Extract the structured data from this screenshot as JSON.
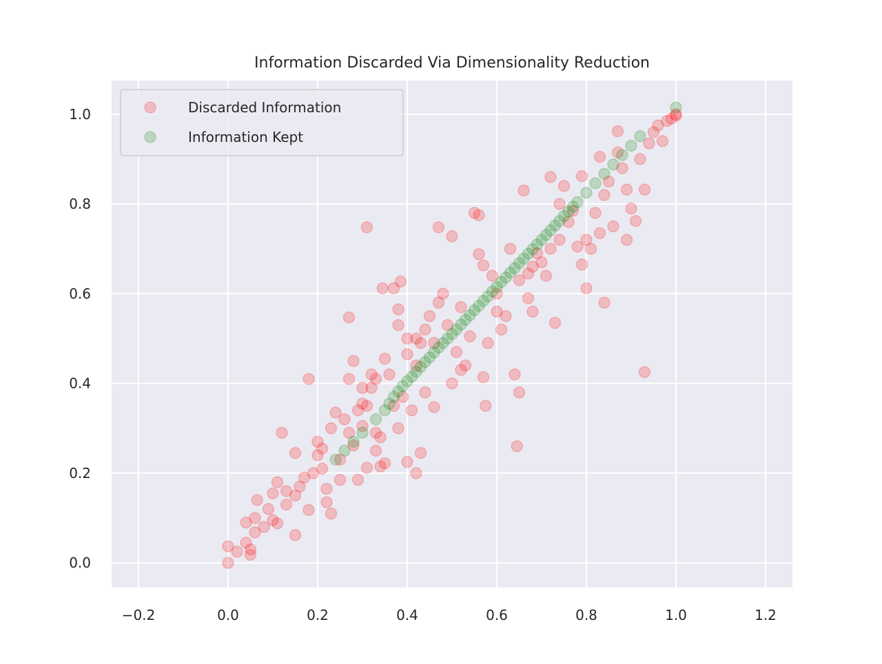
{
  "chart_data": {
    "type": "scatter",
    "title": "Information Discarded Via Dimensionality Reduction",
    "xlabel": "",
    "ylabel": "",
    "xlim": [
      -0.26,
      1.26
    ],
    "ylim": [
      -0.055,
      1.075
    ],
    "x_ticks": [
      -0.2,
      0.0,
      0.2,
      0.4,
      0.6,
      0.8,
      1.0,
      1.2
    ],
    "x_tick_labels": [
      "−0.2",
      "0.0",
      "0.2",
      "0.4",
      "0.6",
      "0.8",
      "1.0",
      "1.2"
    ],
    "y_ticks": [
      0.0,
      0.2,
      0.4,
      0.6,
      0.8,
      1.0
    ],
    "y_tick_labels": [
      "0.0",
      "0.2",
      "0.4",
      "0.6",
      "0.8",
      "1.0"
    ],
    "grid": true,
    "legend_position": "top-left",
    "colors": {
      "background": "#eaeaf2",
      "grid": "#ffffff",
      "discarded": "#ff0000",
      "kept": "#008000",
      "text": "#262626"
    },
    "series": [
      {
        "name": "Discarded Information",
        "color": "#ff0000",
        "alpha": 0.2,
        "points": [
          [
            0.0,
            0.0
          ],
          [
            0.0,
            0.037
          ],
          [
            0.02,
            0.025
          ],
          [
            0.04,
            0.045
          ],
          [
            0.05,
            0.03
          ],
          [
            0.05,
            0.018
          ],
          [
            0.04,
            0.09
          ],
          [
            0.06,
            0.068
          ],
          [
            0.06,
            0.1
          ],
          [
            0.065,
            0.14
          ],
          [
            0.08,
            0.08
          ],
          [
            0.09,
            0.12
          ],
          [
            0.1,
            0.095
          ],
          [
            0.1,
            0.155
          ],
          [
            0.11,
            0.088
          ],
          [
            0.11,
            0.18
          ],
          [
            0.12,
            0.29
          ],
          [
            0.13,
            0.13
          ],
          [
            0.13,
            0.16
          ],
          [
            0.15,
            0.15
          ],
          [
            0.15,
            0.062
          ],
          [
            0.15,
            0.245
          ],
          [
            0.16,
            0.17
          ],
          [
            0.17,
            0.19
          ],
          [
            0.18,
            0.118
          ],
          [
            0.18,
            0.41
          ],
          [
            0.19,
            0.2
          ],
          [
            0.2,
            0.24
          ],
          [
            0.2,
            0.27
          ],
          [
            0.21,
            0.21
          ],
          [
            0.21,
            0.255
          ],
          [
            0.22,
            0.165
          ],
          [
            0.22,
            0.135
          ],
          [
            0.23,
            0.11
          ],
          [
            0.23,
            0.3
          ],
          [
            0.24,
            0.335
          ],
          [
            0.25,
            0.23
          ],
          [
            0.25,
            0.185
          ],
          [
            0.26,
            0.32
          ],
          [
            0.27,
            0.29
          ],
          [
            0.27,
            0.41
          ],
          [
            0.27,
            0.547
          ],
          [
            0.28,
            0.45
          ],
          [
            0.28,
            0.262
          ],
          [
            0.29,
            0.185
          ],
          [
            0.29,
            0.34
          ],
          [
            0.3,
            0.355
          ],
          [
            0.3,
            0.39
          ],
          [
            0.3,
            0.305
          ],
          [
            0.31,
            0.35
          ],
          [
            0.31,
            0.212
          ],
          [
            0.31,
            0.748
          ],
          [
            0.32,
            0.42
          ],
          [
            0.32,
            0.39
          ],
          [
            0.33,
            0.41
          ],
          [
            0.33,
            0.25
          ],
          [
            0.33,
            0.29
          ],
          [
            0.34,
            0.215
          ],
          [
            0.34,
            0.28
          ],
          [
            0.345,
            0.612
          ],
          [
            0.35,
            0.222
          ],
          [
            0.35,
            0.455
          ],
          [
            0.36,
            0.42
          ],
          [
            0.37,
            0.35
          ],
          [
            0.37,
            0.612
          ],
          [
            0.38,
            0.565
          ],
          [
            0.38,
            0.53
          ],
          [
            0.38,
            0.3
          ],
          [
            0.385,
            0.627
          ],
          [
            0.39,
            0.37
          ],
          [
            0.4,
            0.465
          ],
          [
            0.4,
            0.225
          ],
          [
            0.4,
            0.5
          ],
          [
            0.41,
            0.34
          ],
          [
            0.42,
            0.44
          ],
          [
            0.42,
            0.5
          ],
          [
            0.42,
            0.2
          ],
          [
            0.43,
            0.49
          ],
          [
            0.43,
            0.245
          ],
          [
            0.44,
            0.52
          ],
          [
            0.44,
            0.38
          ],
          [
            0.45,
            0.55
          ],
          [
            0.46,
            0.347
          ],
          [
            0.46,
            0.49
          ],
          [
            0.47,
            0.748
          ],
          [
            0.47,
            0.58
          ],
          [
            0.48,
            0.6
          ],
          [
            0.49,
            0.53
          ],
          [
            0.5,
            0.728
          ],
          [
            0.5,
            0.4
          ],
          [
            0.51,
            0.47
          ],
          [
            0.52,
            0.57
          ],
          [
            0.52,
            0.43
          ],
          [
            0.53,
            0.44
          ],
          [
            0.54,
            0.505
          ],
          [
            0.55,
            0.78
          ],
          [
            0.56,
            0.775
          ],
          [
            0.56,
            0.688
          ],
          [
            0.57,
            0.663
          ],
          [
            0.57,
            0.414
          ],
          [
            0.575,
            0.35
          ],
          [
            0.58,
            0.49
          ],
          [
            0.59,
            0.64
          ],
          [
            0.6,
            0.6
          ],
          [
            0.6,
            0.56
          ],
          [
            0.61,
            0.52
          ],
          [
            0.62,
            0.55
          ],
          [
            0.63,
            0.7
          ],
          [
            0.64,
            0.42
          ],
          [
            0.645,
            0.26
          ],
          [
            0.65,
            0.38
          ],
          [
            0.65,
            0.63
          ],
          [
            0.66,
            0.83
          ],
          [
            0.67,
            0.645
          ],
          [
            0.67,
            0.59
          ],
          [
            0.68,
            0.66
          ],
          [
            0.68,
            0.56
          ],
          [
            0.69,
            0.69
          ],
          [
            0.7,
            0.67
          ],
          [
            0.71,
            0.64
          ],
          [
            0.72,
            0.86
          ],
          [
            0.72,
            0.7
          ],
          [
            0.73,
            0.535
          ],
          [
            0.74,
            0.8
          ],
          [
            0.74,
            0.72
          ],
          [
            0.75,
            0.84
          ],
          [
            0.76,
            0.76
          ],
          [
            0.77,
            0.785
          ],
          [
            0.78,
            0.705
          ],
          [
            0.79,
            0.862
          ],
          [
            0.79,
            0.665
          ],
          [
            0.8,
            0.612
          ],
          [
            0.8,
            0.72
          ],
          [
            0.81,
            0.7
          ],
          [
            0.82,
            0.78
          ],
          [
            0.83,
            0.905
          ],
          [
            0.83,
            0.735
          ],
          [
            0.84,
            0.58
          ],
          [
            0.84,
            0.82
          ],
          [
            0.85,
            0.85
          ],
          [
            0.86,
            0.75
          ],
          [
            0.87,
            0.962
          ],
          [
            0.87,
            0.915
          ],
          [
            0.88,
            0.88
          ],
          [
            0.89,
            0.832
          ],
          [
            0.89,
            0.72
          ],
          [
            0.9,
            0.79
          ],
          [
            0.91,
            0.762
          ],
          [
            0.92,
            0.9
          ],
          [
            0.93,
            0.425
          ],
          [
            0.93,
            0.832
          ],
          [
            0.94,
            0.935
          ],
          [
            0.95,
            0.96
          ],
          [
            0.96,
            0.975
          ],
          [
            0.97,
            0.94
          ],
          [
            0.98,
            0.985
          ],
          [
            0.99,
            0.99
          ],
          [
            1.0,
            1.0
          ],
          [
            1.0,
            0.997
          ]
        ]
      },
      {
        "name": "Information Kept",
        "color": "#008000",
        "alpha": 0.2,
        "points": [
          [
            0.24,
            0.23
          ],
          [
            0.26,
            0.25
          ],
          [
            0.28,
            0.27
          ],
          [
            0.3,
            0.29
          ],
          [
            0.33,
            0.32
          ],
          [
            0.35,
            0.34
          ],
          [
            0.36,
            0.355
          ],
          [
            0.37,
            0.37
          ],
          [
            0.38,
            0.382
          ],
          [
            0.39,
            0.394
          ],
          [
            0.4,
            0.405
          ],
          [
            0.41,
            0.415
          ],
          [
            0.42,
            0.426
          ],
          [
            0.43,
            0.437
          ],
          [
            0.44,
            0.448
          ],
          [
            0.45,
            0.458
          ],
          [
            0.46,
            0.469
          ],
          [
            0.47,
            0.48
          ],
          [
            0.48,
            0.49
          ],
          [
            0.49,
            0.5
          ],
          [
            0.5,
            0.51
          ],
          [
            0.51,
            0.52
          ],
          [
            0.52,
            0.531
          ],
          [
            0.53,
            0.542
          ],
          [
            0.54,
            0.552
          ],
          [
            0.55,
            0.563
          ],
          [
            0.56,
            0.573
          ],
          [
            0.57,
            0.584
          ],
          [
            0.58,
            0.594
          ],
          [
            0.59,
            0.605
          ],
          [
            0.6,
            0.615
          ],
          [
            0.61,
            0.626
          ],
          [
            0.62,
            0.636
          ],
          [
            0.63,
            0.647
          ],
          [
            0.64,
            0.657
          ],
          [
            0.65,
            0.668
          ],
          [
            0.66,
            0.678
          ],
          [
            0.67,
            0.689
          ],
          [
            0.68,
            0.699
          ],
          [
            0.69,
            0.71
          ],
          [
            0.7,
            0.72
          ],
          [
            0.71,
            0.731
          ],
          [
            0.72,
            0.741
          ],
          [
            0.73,
            0.752
          ],
          [
            0.74,
            0.762
          ],
          [
            0.75,
            0.773
          ],
          [
            0.76,
            0.783
          ],
          [
            0.77,
            0.794
          ],
          [
            0.78,
            0.804
          ],
          [
            0.8,
            0.825
          ],
          [
            0.82,
            0.846
          ],
          [
            0.84,
            0.867
          ],
          [
            0.86,
            0.888
          ],
          [
            0.88,
            0.909
          ],
          [
            0.9,
            0.93
          ],
          [
            0.92,
            0.951
          ],
          [
            1.0,
            1.015
          ]
        ]
      }
    ]
  }
}
